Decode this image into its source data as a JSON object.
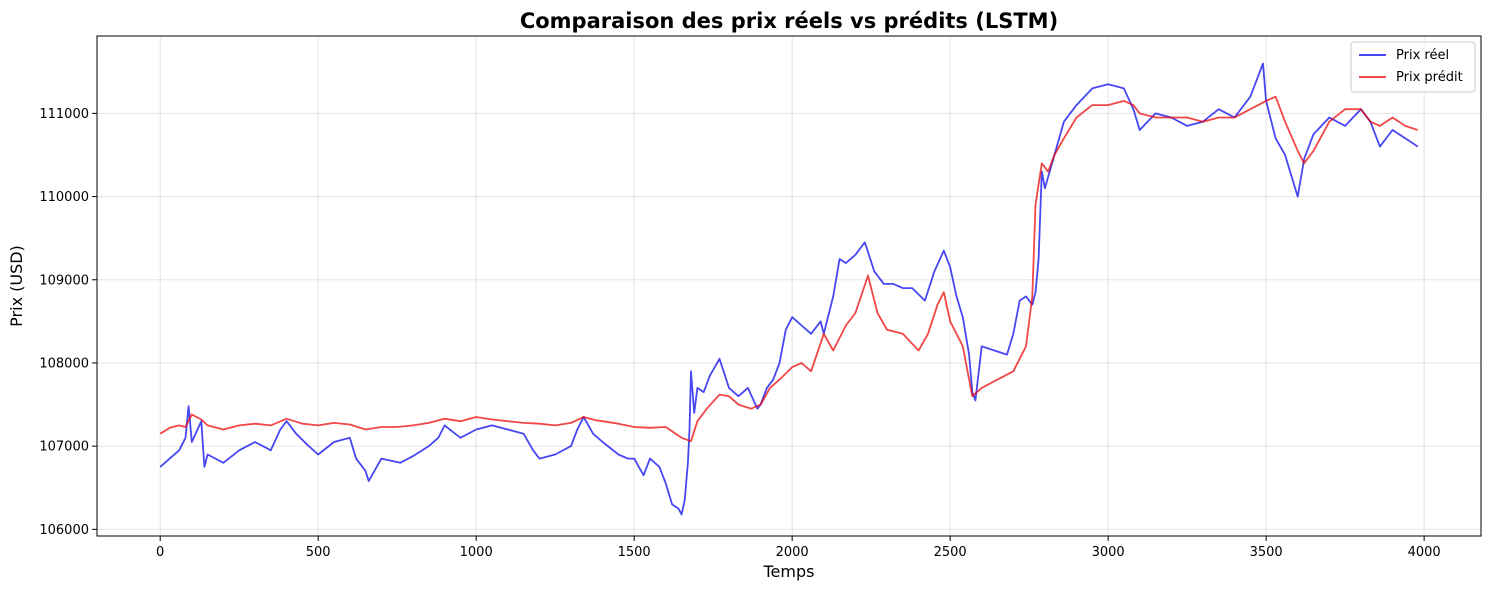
{
  "chart_data": {
    "type": "line",
    "title": "Comparaison des prix réels vs prédits (LSTM)",
    "xlabel": "Temps",
    "ylabel": "Prix (USD)",
    "xlim": [
      -200,
      4180
    ],
    "ylim": [
      105920,
      111930
    ],
    "xticks": [
      0,
      500,
      1000,
      1500,
      2000,
      2500,
      3000,
      3500,
      4000
    ],
    "xtick_labels": [
      "0",
      "500",
      "1000",
      "1500",
      "2000",
      "2500",
      "3000",
      "3500",
      "4000"
    ],
    "yticks": [
      106000,
      107000,
      108000,
      109000,
      110000,
      111000
    ],
    "ytick_labels": [
      "106000",
      "107000",
      "108000",
      "109000",
      "110000",
      "111000"
    ],
    "grid": true,
    "legend_position": "top-right",
    "series": [
      {
        "name": "Prix réel",
        "color": "#0000ee",
        "x": [
          0,
          30,
          60,
          80,
          90,
          100,
          130,
          140,
          150,
          200,
          250,
          300,
          350,
          380,
          400,
          430,
          470,
          500,
          550,
          600,
          620,
          650,
          660,
          700,
          760,
          800,
          850,
          880,
          900,
          950,
          1000,
          1050,
          1100,
          1150,
          1180,
          1200,
          1250,
          1300,
          1320,
          1340,
          1370,
          1400,
          1450,
          1480,
          1500,
          1530,
          1550,
          1580,
          1600,
          1620,
          1640,
          1650,
          1660,
          1670,
          1675,
          1680,
          1690,
          1700,
          1720,
          1740,
          1770,
          1800,
          1830,
          1860,
          1890,
          1900,
          1920,
          1940,
          1960,
          1980,
          2000,
          2030,
          2060,
          2090,
          2100,
          2130,
          2150,
          2170,
          2200,
          2230,
          2260,
          2290,
          2320,
          2350,
          2380,
          2420,
          2450,
          2480,
          2500,
          2520,
          2540,
          2560,
          2570,
          2580,
          2600,
          2640,
          2680,
          2700,
          2720,
          2740,
          2760,
          2770,
          2780,
          2790,
          2800,
          2830,
          2860,
          2900,
          2950,
          3000,
          3050,
          3080,
          3100,
          3150,
          3200,
          3250,
          3300,
          3350,
          3400,
          3450,
          3470,
          3490,
          3500,
          3530,
          3560,
          3600,
          3620,
          3650,
          3700,
          3750,
          3800,
          3830,
          3860,
          3900,
          3940,
          3980
        ],
        "y": [
          106750,
          106850,
          106950,
          107100,
          107480,
          107050,
          107300,
          106750,
          106900,
          106800,
          106950,
          107050,
          106950,
          107200,
          107300,
          107150,
          107000,
          106900,
          107050,
          107100,
          106850,
          106700,
          106580,
          106850,
          106800,
          106880,
          107000,
          107100,
          107250,
          107100,
          107200,
          107250,
          107200,
          107150,
          106950,
          106850,
          106900,
          107000,
          107200,
          107350,
          107150,
          107050,
          106900,
          106850,
          106850,
          106650,
          106850,
          106750,
          106550,
          106300,
          106250,
          106180,
          106350,
          106800,
          107200,
          107900,
          107400,
          107700,
          107650,
          107850,
          108050,
          107700,
          107600,
          107700,
          107450,
          107500,
          107700,
          107800,
          108000,
          108400,
          108550,
          108450,
          108350,
          108500,
          108350,
          108800,
          109250,
          109200,
          109300,
          109450,
          109100,
          108950,
          108950,
          108900,
          108900,
          108750,
          109100,
          109350,
          109150,
          108800,
          108550,
          108100,
          107650,
          107550,
          108200,
          108150,
          108100,
          108350,
          108750,
          108800,
          108700,
          108850,
          109250,
          110300,
          110100,
          110500,
          110900,
          111100,
          111300,
          111350,
          111300,
          111050,
          110800,
          111000,
          110950,
          110850,
          110900,
          111050,
          110950,
          111200,
          111400,
          111600,
          111150,
          110700,
          110500,
          110000,
          110450,
          110750,
          110950,
          110850,
          111050,
          110900,
          110600,
          110800,
          110700,
          110600
        ]
      },
      {
        "name": "Prix prédit",
        "color": "#ee0000",
        "x": [
          0,
          30,
          60,
          80,
          100,
          130,
          150,
          200,
          250,
          300,
          350,
          400,
          450,
          500,
          550,
          600,
          650,
          700,
          750,
          800,
          850,
          900,
          950,
          1000,
          1050,
          1100,
          1150,
          1200,
          1250,
          1300,
          1340,
          1380,
          1400,
          1450,
          1500,
          1550,
          1600,
          1650,
          1680,
          1700,
          1730,
          1770,
          1800,
          1830,
          1870,
          1900,
          1930,
          1960,
          2000,
          2030,
          2060,
          2100,
          2130,
          2170,
          2200,
          2240,
          2270,
          2300,
          2350,
          2400,
          2430,
          2460,
          2480,
          2500,
          2540,
          2570,
          2600,
          2650,
          2700,
          2740,
          2760,
          2770,
          2790,
          2810,
          2830,
          2860,
          2900,
          2950,
          3000,
          3050,
          3080,
          3100,
          3150,
          3200,
          3250,
          3300,
          3350,
          3400,
          3450,
          3500,
          3530,
          3560,
          3600,
          3620,
          3650,
          3700,
          3750,
          3800,
          3830,
          3860,
          3900,
          3940,
          3980
        ],
        "y": [
          107150,
          107220,
          107250,
          107230,
          107380,
          107320,
          107250,
          107200,
          107250,
          107270,
          107250,
          107330,
          107270,
          107250,
          107280,
          107260,
          107200,
          107230,
          107230,
          107250,
          107280,
          107330,
          107300,
          107350,
          107320,
          107300,
          107280,
          107270,
          107250,
          107280,
          107350,
          107310,
          107300,
          107270,
          107230,
          107220,
          107230,
          107100,
          107060,
          107300,
          107450,
          107620,
          107600,
          107500,
          107450,
          107500,
          107700,
          107800,
          107950,
          108000,
          107900,
          108350,
          108150,
          108450,
          108600,
          109050,
          108600,
          108400,
          108350,
          108150,
          108350,
          108700,
          108850,
          108500,
          108200,
          107600,
          107700,
          107800,
          107900,
          108200,
          108800,
          109900,
          110400,
          110300,
          110500,
          110700,
          110950,
          111100,
          111100,
          111150,
          111100,
          111000,
          110950,
          110950,
          110950,
          110900,
          110950,
          110950,
          111050,
          111150,
          111200,
          110900,
          110550,
          110400,
          110550,
          110900,
          111050,
          111050,
          110900,
          110850,
          110950,
          110850,
          110800
        ]
      }
    ]
  }
}
